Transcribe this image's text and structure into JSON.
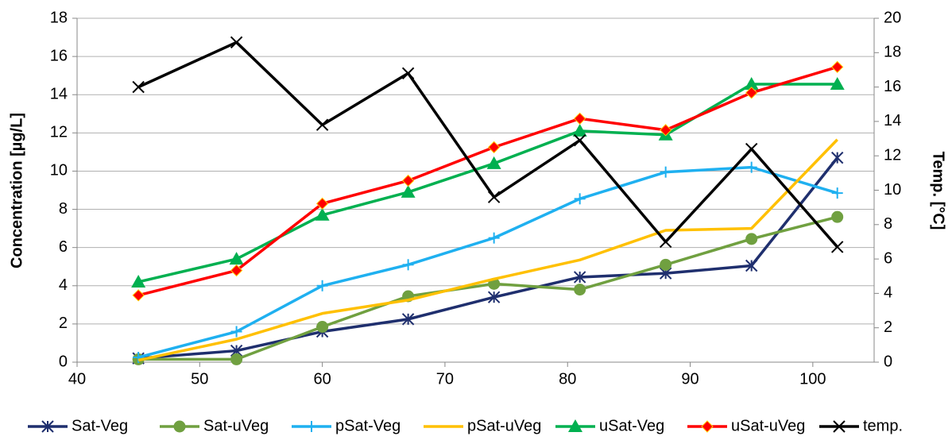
{
  "chart_data": {
    "type": "line",
    "x": [
      45,
      53,
      60,
      67,
      74,
      81,
      88,
      95,
      102
    ],
    "xlim": [
      40,
      105
    ],
    "xticks": [
      40,
      50,
      60,
      70,
      80,
      90,
      100
    ],
    "ylim": [
      0,
      18
    ],
    "yticks": [
      0,
      2,
      4,
      6,
      8,
      10,
      12,
      14,
      16,
      18
    ],
    "y2lim": [
      0,
      20
    ],
    "y2ticks": [
      0,
      2,
      4,
      6,
      8,
      10,
      12,
      14,
      16,
      18,
      20
    ],
    "ylabel": "Concentration [µg/L]",
    "y2label": "Temp. [°C]",
    "grid": true,
    "legend": "bottom",
    "series": [
      {
        "name": "Sat-Veg",
        "color": "#1f2f6e",
        "marker": "asterisk",
        "values": [
          0.2,
          0.6,
          1.6,
          2.25,
          3.4,
          4.45,
          4.65,
          5.05,
          10.7
        ]
      },
      {
        "name": "Sat-uVeg",
        "color": "#70a040",
        "marker": "circle",
        "values": [
          0.15,
          0.15,
          1.85,
          3.45,
          4.1,
          3.8,
          5.1,
          6.45,
          7.6
        ]
      },
      {
        "name": "pSat-Veg",
        "color": "#1fb0f0",
        "marker": "plus",
        "values": [
          0.25,
          1.6,
          4.0,
          5.1,
          6.5,
          8.55,
          9.95,
          10.2,
          8.85
        ]
      },
      {
        "name": "pSat-uVeg",
        "color": "#ffc000",
        "marker": "none",
        "values": [
          0.1,
          1.2,
          2.55,
          3.25,
          4.35,
          5.35,
          6.9,
          7.0,
          11.65
        ]
      },
      {
        "name": "uSat-Veg",
        "color": "#00b050",
        "marker": "triangle",
        "values": [
          4.2,
          5.4,
          7.7,
          8.9,
          10.4,
          12.1,
          11.9,
          14.55,
          14.55
        ]
      },
      {
        "name": "uSat-uVeg",
        "color": "#ff0000",
        "marker": "diamond",
        "values": [
          3.5,
          4.8,
          8.3,
          9.5,
          11.25,
          12.75,
          12.15,
          14.1,
          15.45
        ]
      },
      {
        "name": "temp.",
        "color": "#000000",
        "marker": "x",
        "axis": "y2",
        "values": [
          16.0,
          18.6,
          13.8,
          16.8,
          9.6,
          12.9,
          7.0,
          12.4,
          6.7
        ]
      }
    ]
  }
}
